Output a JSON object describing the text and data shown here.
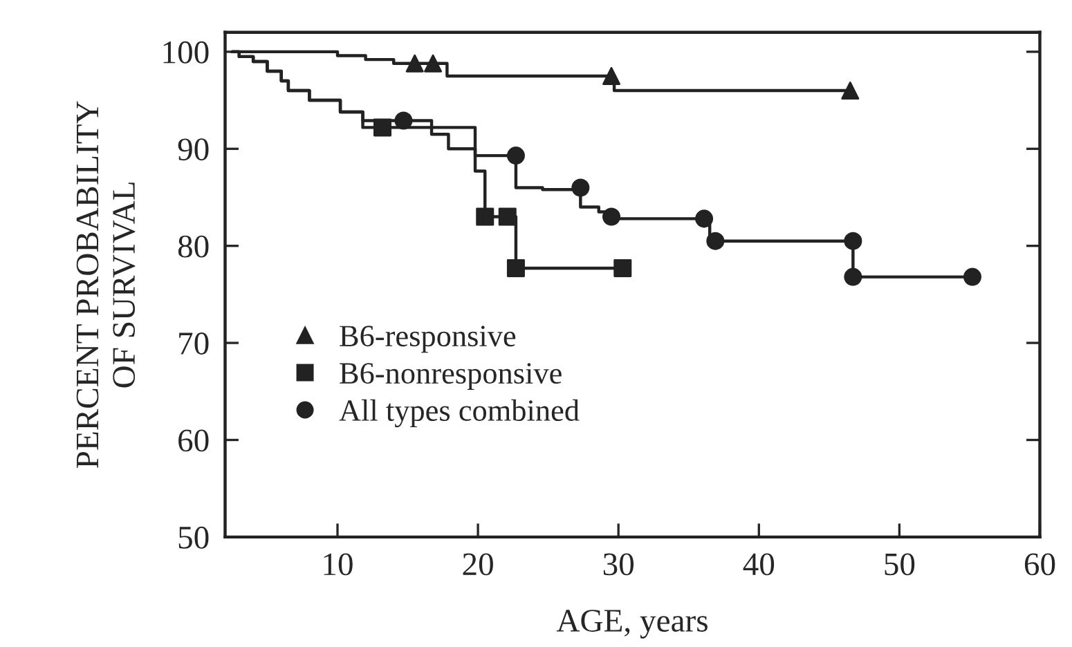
{
  "chart_data": {
    "type": "step",
    "xlabel": "AGE, years",
    "ylabel": "PERCENT PROBABILITY\nOF SURVIVAL",
    "xlim": [
      2,
      60
    ],
    "xticks": [
      10,
      20,
      30,
      40,
      50,
      60
    ],
    "ylim": [
      50,
      102
    ],
    "yticks": [
      50,
      60,
      70,
      80,
      90,
      100
    ],
    "grid": false,
    "legend": "bottom left",
    "series": [
      {
        "color": "#222222",
        "x": [
          2.5,
          10,
          12,
          14,
          17.8,
          29.7,
          46.5
        ],
        "values": [
          100,
          99.6,
          99.2,
          98.8,
          97.5,
          96,
          96
        ]
      },
      {
        "color": "#222222",
        "x": [
          2.5,
          3,
          4,
          5,
          6,
          6.5,
          8,
          10.2,
          11.8,
          19.8,
          20.5,
          22.7,
          30.3
        ],
        "values": [
          100,
          99.5,
          99,
          98,
          97,
          96,
          95,
          93.8,
          92.2,
          87.7,
          83,
          77.7,
          77.7
        ]
      },
      {
        "color": "#222222",
        "x": [
          2.5,
          3,
          4,
          5,
          6,
          6.5,
          8,
          10.2,
          11.8,
          16.7,
          17.9,
          19.8,
          22.7,
          24.6,
          27.3,
          28.6,
          29.5,
          36.5,
          46.7,
          55.2
        ],
        "values": [
          100,
          99.5,
          99,
          98,
          97,
          96,
          95,
          93.8,
          92.9,
          91.5,
          90,
          89.3,
          86,
          85.8,
          84,
          83.5,
          82.8,
          80.5,
          76.8,
          76.8
        ]
      },
      {
        "type": "scatter",
        "name": "B6-responsive",
        "marker": "triangle",
        "color": "#222222",
        "x": [
          15.5,
          16.8,
          29.5,
          46.5
        ],
        "values": [
          98.8,
          98.8,
          97.5,
          96
        ]
      },
      {
        "type": "scatter",
        "name": "B6-nonresponsive",
        "marker": "square",
        "color": "#222222",
        "x": [
          13.2,
          20.5,
          22.1,
          22.7,
          30.3
        ],
        "values": [
          92.2,
          83,
          83,
          77.7,
          77.7
        ]
      },
      {
        "type": "scatter",
        "name": "All types combined",
        "marker": "circle",
        "color": "#222222",
        "x": [
          14.7,
          22.7,
          27.3,
          29.5,
          36.1,
          36.9,
          46.7,
          46.7,
          55.2
        ],
        "values": [
          92.9,
          89.3,
          86,
          83,
          82.8,
          80.5,
          80.5,
          76.8,
          76.8
        ]
      }
    ]
  }
}
